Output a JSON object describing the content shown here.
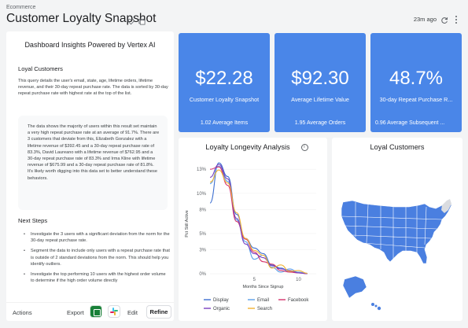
{
  "header": {
    "breadcrumb": "Ecommerce",
    "title": "Customer Loyalty Snapshot",
    "updated": "23m ago"
  },
  "insights": {
    "header": "Dashboard Insights Powered by Vertex AI",
    "section1_title": "Loyal Customers",
    "section1_body": "This query details the user's email, state, age, lifetime orders, lifetime revenue, and their 30-day repeat purchase rate. The data is sorted by 30-day repeat purchase rate with highest rate at the top of the list.",
    "quote": "The data shows the majority of users within this result set maintain a very high repeat purchase rate at an average of 91.7%. There are 3 customers that deviate from this, Elizabeth Gonzalez with a lifetime revenue of $392.45 and a 30-day repeat purchase rate of 83.3%, David Laureano with a lifetime revenue of $762.95 and a 30-day repeat purchase rate of 83.3% and Irma Kline with lifetime revenue of $675.99 and a 30-day repeat purchase rate of 81.8%. It's likely worth digging into this data set to better understand these behaviors.",
    "next_steps_title": "Next Steps",
    "next_steps": [
      "Investigate the 3 users with a significant deviation from the norm for the 30-day repeat purchase rate.",
      "Segment the data to include only users with a repeat purchase rate that is outside of 2 standard deviations from the norm. This should help you identify outliers.",
      "Investigate the top performing 10 users with the highest order volume to determine if the high order volume directly"
    ]
  },
  "actions": {
    "actions_label": "Actions",
    "export_label": "Export",
    "edit_label": "Edit",
    "refine_label": "Refine"
  },
  "kpis": [
    {
      "value": "$22.28",
      "label": "Customer Loyalty Snapshot",
      "footer": "1.02 Average Items"
    },
    {
      "value": "$92.30",
      "label": "Average Lifetime Value",
      "footer": "1.95 Average Orders"
    },
    {
      "value": "48.7%",
      "label": "30-day Repeat Purchase R...",
      "footer": "0.96 Average Subsequent ..."
    }
  ],
  "colors": {
    "kpi_bg": "#4a86e8",
    "map_fill": "#4a7fe0",
    "map_light": "#dadce0"
  },
  "line_chart": {
    "title": "Loyalty Longevity Analysis",
    "chart_data": {
      "type": "line",
      "title": "Loyalty Longevity Analysis",
      "xlabel": "Months Since Signup",
      "ylabel": "Pct Still Active",
      "xlim": [
        0,
        12
      ],
      "ylim": [
        0,
        14
      ],
      "x_ticks": [
        5,
        10
      ],
      "y_ticks": [
        "0%",
        "3%",
        "5%",
        "8%",
        "10%",
        "13%"
      ],
      "y_tick_values": [
        0,
        3,
        5,
        8,
        10,
        13
      ],
      "legend_position": "bottom",
      "series": [
        {
          "name": "Display",
          "color": "#3d6fd1",
          "x": [
            0,
            1,
            2,
            3,
            4,
            5,
            6,
            7,
            8,
            9,
            10,
            11
          ],
          "y": [
            8.8,
            13.8,
            12.1,
            7.4,
            4.4,
            3.2,
            2.5,
            1.1,
            0.7,
            0.3,
            0.15,
            0.05
          ]
        },
        {
          "name": "Email",
          "color": "#5aa0e8",
          "x": [
            0,
            1,
            2,
            3,
            4,
            5,
            6,
            7,
            8,
            9,
            10,
            11
          ],
          "y": [
            11.2,
            13.4,
            11.5,
            6.7,
            4.0,
            1.8,
            2.3,
            0.8,
            0.2,
            0.6,
            0.2,
            0.05
          ]
        },
        {
          "name": "Facebook",
          "color": "#d6336c",
          "x": [
            0,
            1,
            2,
            3,
            4,
            5,
            6,
            7,
            8,
            9,
            10,
            11
          ],
          "y": [
            13.0,
            13.3,
            11.0,
            6.5,
            4.3,
            2.7,
            1.5,
            1.2,
            0.4,
            0.2,
            0.1,
            0.0
          ]
        },
        {
          "name": "Organic",
          "color": "#7a3fc0",
          "x": [
            0,
            1,
            2,
            3,
            4,
            5,
            6,
            7,
            8,
            9,
            10,
            11
          ],
          "y": [
            12.0,
            13.6,
            11.8,
            6.9,
            3.7,
            2.5,
            2.0,
            1.0,
            0.6,
            0.4,
            0.1,
            0.0
          ]
        },
        {
          "name": "Search",
          "color": "#f2b233",
          "x": [
            0,
            1,
            2,
            3,
            4,
            5,
            6,
            7,
            8,
            9,
            10,
            11
          ],
          "y": [
            11.4,
            12.9,
            11.3,
            7.6,
            4.4,
            2.9,
            2.3,
            0.7,
            1.1,
            0.3,
            0.4,
            0.05
          ]
        }
      ]
    }
  },
  "map": {
    "title": "Loyal Customers"
  }
}
